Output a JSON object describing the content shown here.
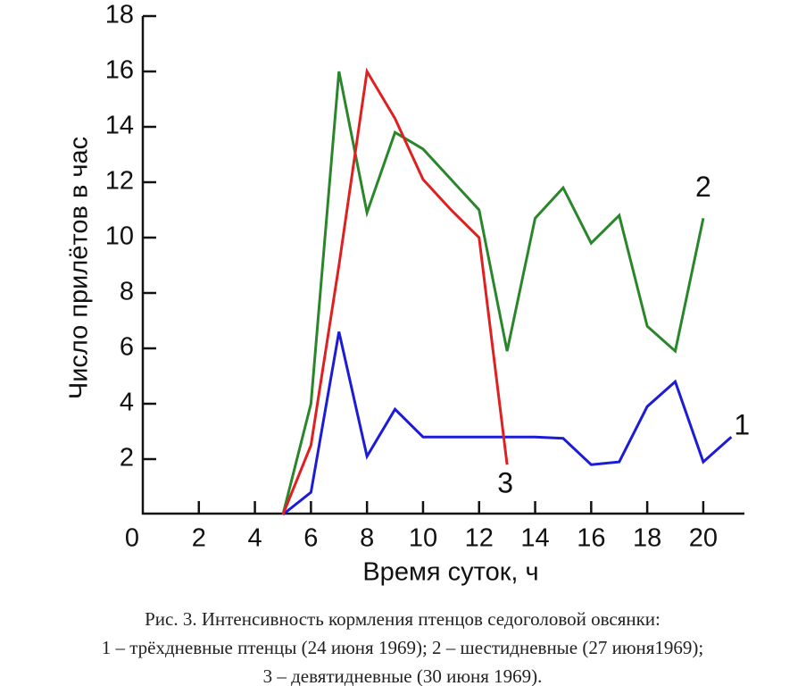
{
  "chart_data": {
    "type": "line",
    "ylabel": "Число прилётов в час",
    "xlabel": "Время суток, ч",
    "caption": [
      "Рис. 3. Интенсивность кормления птенцов седоголовой овсянки:",
      "1 – трёхдневные птенцы (24 июня 1969); 2 – шестидневные (27 июня1969);",
      "3 – девятидневные (30 июня 1969)."
    ],
    "x": [
      5,
      6,
      7,
      8,
      9,
      10,
      11,
      12,
      13,
      14,
      15,
      16,
      17,
      18,
      19,
      20,
      21
    ],
    "series": [
      {
        "name": "1",
        "color": "#1c1cd8",
        "values": [
          0,
          0.8,
          6.6,
          2.1,
          3.8,
          2.8,
          2.8,
          2.8,
          2.8,
          2.8,
          2.75,
          1.8,
          1.9,
          3.9,
          4.8,
          1.9,
          2.8
        ]
      },
      {
        "name": "2",
        "color": "#2a862a",
        "values": [
          0,
          4,
          16,
          10.9,
          13.8,
          13.2,
          12.1,
          11,
          5.9,
          10.7,
          11.8,
          9.8,
          10.8,
          6.8,
          5.9,
          10.7,
          null
        ]
      },
      {
        "name": "3",
        "color": "#e02020",
        "values": [
          0,
          2.5,
          9,
          16,
          14.3,
          12.1,
          11,
          10,
          1.8,
          null,
          null,
          null,
          null,
          null,
          null,
          null,
          null
        ]
      }
    ],
    "xlim": [
      0,
      21.5
    ],
    "ylim": [
      0,
      18
    ],
    "xticks": [
      0,
      2,
      4,
      6,
      8,
      10,
      12,
      14,
      16,
      18,
      20
    ],
    "yticks": [
      2,
      4,
      6,
      8,
      10,
      12,
      14,
      16,
      18
    ]
  }
}
